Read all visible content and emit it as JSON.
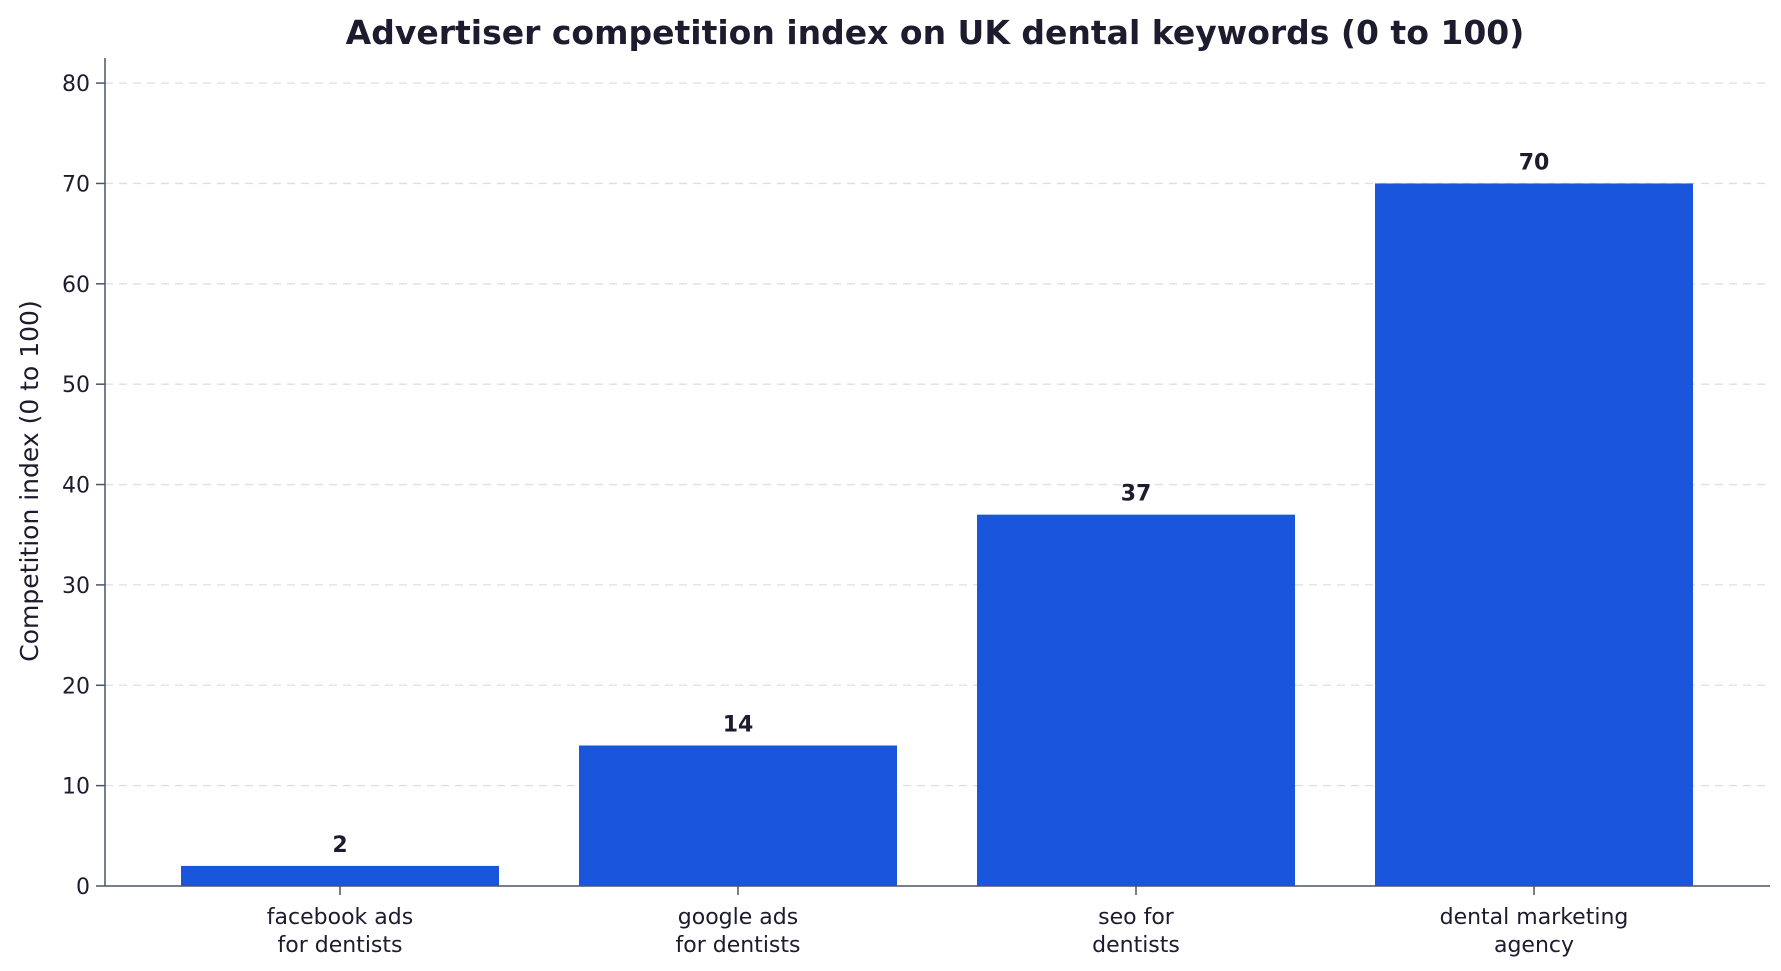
{
  "chart_data": {
    "type": "bar",
    "title": "Advertiser competition index on UK dental keywords (0 to 100)",
    "xlabel": "",
    "ylabel": "Competition index (0 to 100)",
    "categories": [
      [
        "facebook ads",
        "for dentists"
      ],
      [
        "google ads",
        "for dentists"
      ],
      [
        "seo for",
        "dentists"
      ],
      [
        "dental marketing",
        "agency"
      ]
    ],
    "values": [
      2,
      14,
      37,
      70
    ],
    "value_labels": [
      "2",
      "14",
      "37",
      "70"
    ],
    "ylim": [
      0,
      82.5
    ],
    "yticks": [
      0,
      10,
      20,
      30,
      40,
      50,
      60,
      70,
      80
    ],
    "ytick_labels": [
      "0",
      "10",
      "20",
      "30",
      "40",
      "50",
      "60",
      "70",
      "80"
    ],
    "grid": true,
    "legend": "none",
    "bar_color": "#1a56db"
  }
}
